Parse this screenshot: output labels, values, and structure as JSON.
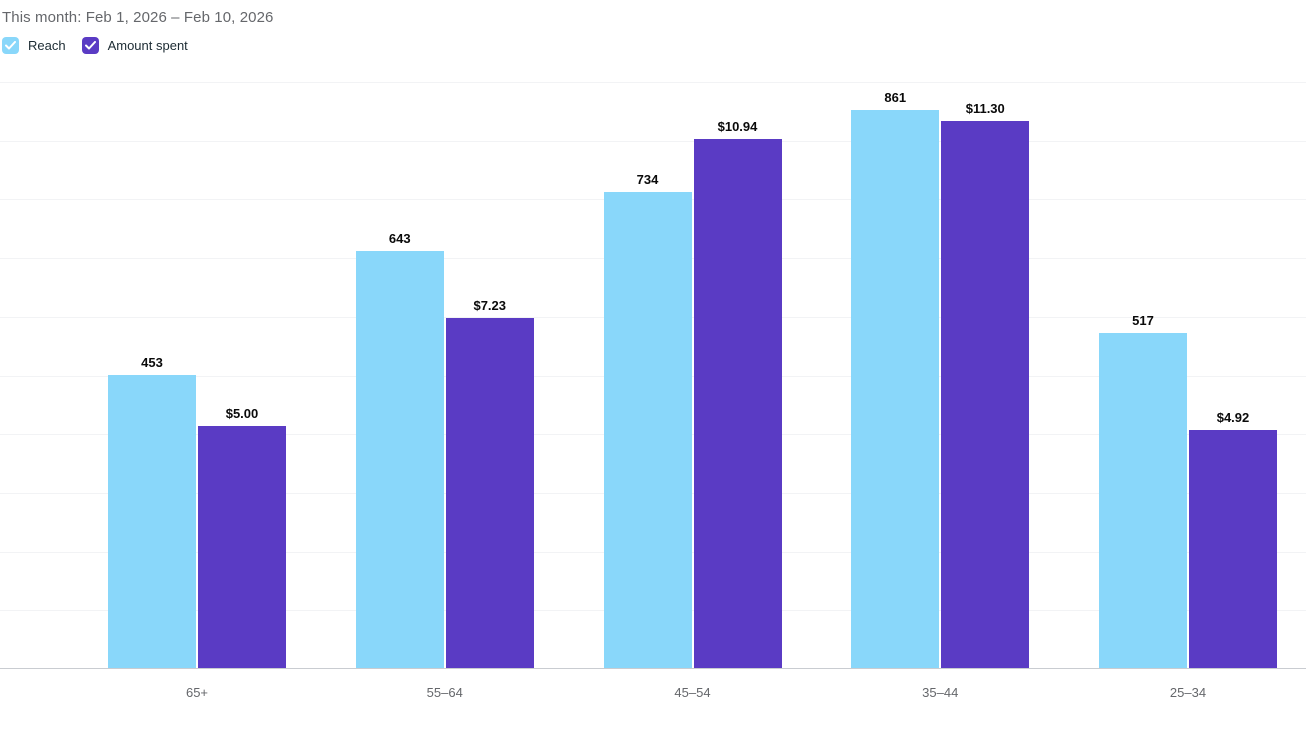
{
  "header": {
    "title": "This month: Feb 1, 2026 – Feb 10, 2026"
  },
  "legend": [
    {
      "label": "Reach",
      "color": "#89D7FA",
      "checked": true
    },
    {
      "label": "Amount spent",
      "color": "#5A3BC4",
      "checked": true
    }
  ],
  "chart_data": {
    "type": "bar",
    "title": "This month: Feb 1, 2026 – Feb 10, 2026",
    "categories": [
      "65+",
      "55–64",
      "45–54",
      "35–44",
      "25–34"
    ],
    "series": [
      {
        "name": "Reach",
        "color": "#89D7FA",
        "values": [
          453,
          643,
          734,
          861,
          517
        ],
        "labels": [
          "453",
          "643",
          "734",
          "861",
          "517"
        ],
        "axis_max": 906
      },
      {
        "name": "Amount spent",
        "color": "#5A3BC4",
        "values": [
          5.0,
          7.23,
          10.94,
          11.3,
          4.92
        ],
        "labels": [
          "$5.00",
          "$7.23",
          "$10.94",
          "$11.30",
          "$4.92"
        ],
        "axis_max": 12.13
      }
    ],
    "xlabel": "",
    "ylabel": "",
    "grid": true,
    "gridline_count": 10,
    "legend_position": "top-left",
    "dual_axis": true
  },
  "colors": {
    "title_text": "#65676B",
    "legend_text": "#1C2B33",
    "axis_line": "#C9CCD1",
    "gridline": "#F2F3F5",
    "value_label": "#0A0A0A",
    "x_label": "#65676B",
    "reach": "#89D7FA",
    "amount_spent": "#5A3BC4"
  }
}
